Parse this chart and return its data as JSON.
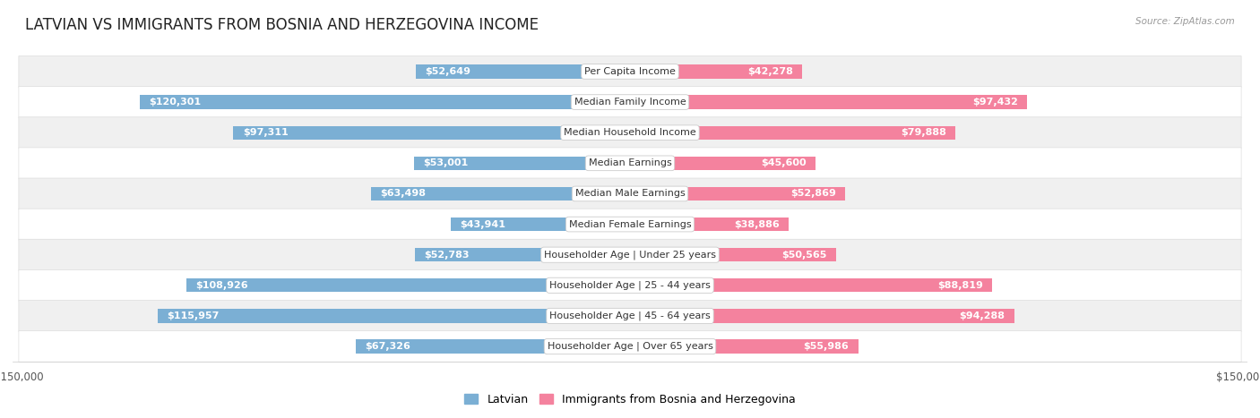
{
  "title": "LATVIAN VS IMMIGRANTS FROM BOSNIA AND HERZEGOVINA INCOME",
  "source": "Source: ZipAtlas.com",
  "categories": [
    "Per Capita Income",
    "Median Family Income",
    "Median Household Income",
    "Median Earnings",
    "Median Male Earnings",
    "Median Female Earnings",
    "Householder Age | Under 25 years",
    "Householder Age | 25 - 44 years",
    "Householder Age | 45 - 64 years",
    "Householder Age | Over 65 years"
  ],
  "latvian_values": [
    52649,
    120301,
    97311,
    53001,
    63498,
    43941,
    52783,
    108926,
    115957,
    67326
  ],
  "bosnian_values": [
    42278,
    97432,
    79888,
    45600,
    52869,
    38886,
    50565,
    88819,
    94288,
    55986
  ],
  "latvian_labels": [
    "$52,649",
    "$120,301",
    "$97,311",
    "$53,001",
    "$63,498",
    "$43,941",
    "$52,783",
    "$108,926",
    "$115,957",
    "$67,326"
  ],
  "bosnian_labels": [
    "$42,278",
    "$97,432",
    "$79,888",
    "$45,600",
    "$52,869",
    "$38,886",
    "$50,565",
    "$88,819",
    "$94,288",
    "$55,986"
  ],
  "latvian_color": "#7bafd4",
  "bosnian_color": "#f4829e",
  "latvian_label_color_inside": "#ffffff",
  "latvian_label_color_outside": "#555555",
  "bosnian_label_color_inside": "#ffffff",
  "bosnian_label_color_outside": "#555555",
  "max_value": 150000,
  "bar_height": 0.45,
  "row_bg_even": "#f0f0f0",
  "row_bg_odd": "#ffffff",
  "background_color": "#ffffff",
  "title_fontsize": 12,
  "label_fontsize": 8,
  "category_fontsize": 8,
  "legend_fontsize": 9,
  "axis_label_fontsize": 8.5,
  "inside_threshold": 0.22
}
